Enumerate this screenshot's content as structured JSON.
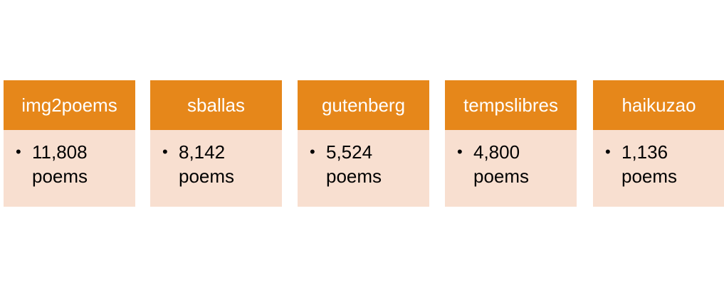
{
  "colors": {
    "header_bg": "#E6871A",
    "body_bg": "#F8DFD0",
    "header_text": "#FFFFFF",
    "body_text": "#000000"
  },
  "bullet_glyph": "•",
  "cards": [
    {
      "title": "img2poems",
      "count": "11,808",
      "unit": "poems"
    },
    {
      "title": "sballas",
      "count": "8,142",
      "unit": "poems"
    },
    {
      "title": "gutenberg",
      "count": "5,524",
      "unit": "poems"
    },
    {
      "title": "tempslibres",
      "count": "4,800",
      "unit": "poems"
    },
    {
      "title": "haikuzao",
      "count": "1,136",
      "unit": "poems"
    }
  ]
}
